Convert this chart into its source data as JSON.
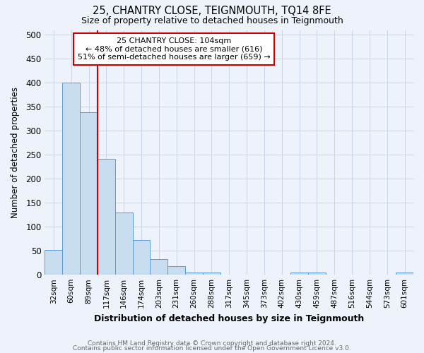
{
  "title": "25, CHANTRY CLOSE, TEIGNMOUTH, TQ14 8FE",
  "subtitle": "Size of property relative to detached houses in Teignmouth",
  "xlabel": "Distribution of detached houses by size in Teignmouth",
  "ylabel": "Number of detached properties",
  "bar_labels": [
    "32sqm",
    "60sqm",
    "89sqm",
    "117sqm",
    "146sqm",
    "174sqm",
    "203sqm",
    "231sqm",
    "260sqm",
    "288sqm",
    "317sqm",
    "345sqm",
    "373sqm",
    "402sqm",
    "430sqm",
    "459sqm",
    "487sqm",
    "516sqm",
    "544sqm",
    "573sqm",
    "601sqm"
  ],
  "bar_values": [
    52,
    400,
    338,
    241,
    130,
    72,
    33,
    18,
    5,
    5,
    1,
    1,
    0,
    0,
    4,
    4,
    0,
    0,
    0,
    0,
    4
  ],
  "bar_color": "#c8ddf0",
  "bar_edge_color": "#5b9bd5",
  "background_color": "#eef2fa",
  "grid_color": "#c8d4e8",
  "vline_x": 2.5,
  "vline_color": "#cc0000",
  "annotation_text": "25 CHANTRY CLOSE: 104sqm\n← 48% of detached houses are smaller (616)\n51% of semi-detached houses are larger (659) →",
  "annotation_box_color": "white",
  "annotation_edge_color": "#cc0000",
  "ylim": [
    0,
    510
  ],
  "yticks": [
    0,
    50,
    100,
    150,
    200,
    250,
    300,
    350,
    400,
    450,
    500
  ],
  "footer1": "Contains HM Land Registry data © Crown copyright and database right 2024.",
  "footer2": "Contains public sector information licensed under the Open Government Licence v3.0."
}
